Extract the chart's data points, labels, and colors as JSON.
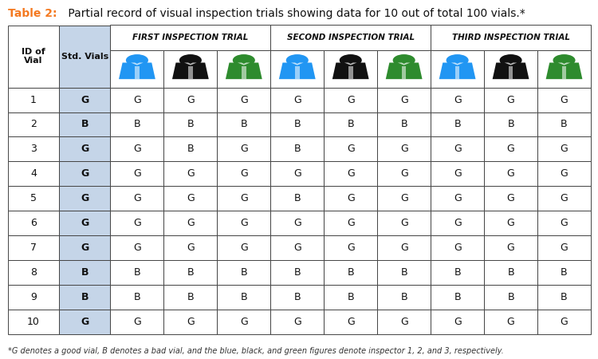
{
  "title_bold": "Table 2:",
  "title_rest": " Partial record of visual inspection trials showing data for 10 out of total 100 vials.*",
  "title_color": "#F47920",
  "title_rest_color": "#111111",
  "footnote": "*G denotes a good vial, B denotes a bad vial, and the blue, black, and green figures denote inspector 1, 2, and 3, respectively.",
  "inspector_colors": [
    "#2196F3",
    "#111111",
    "#2E8B2E"
  ],
  "std_vials_bg": "#C5D5E8",
  "row_data": [
    [
      1,
      "G",
      "G",
      "G",
      "G",
      "G",
      "G",
      "G",
      "G",
      "G",
      "G"
    ],
    [
      2,
      "B",
      "B",
      "B",
      "B",
      "B",
      "B",
      "B",
      "B",
      "B",
      "B"
    ],
    [
      3,
      "G",
      "G",
      "B",
      "G",
      "B",
      "G",
      "G",
      "G",
      "G",
      "G"
    ],
    [
      4,
      "G",
      "G",
      "G",
      "G",
      "G",
      "G",
      "G",
      "G",
      "G",
      "G"
    ],
    [
      5,
      "G",
      "G",
      "G",
      "G",
      "B",
      "G",
      "G",
      "G",
      "G",
      "G"
    ],
    [
      6,
      "G",
      "G",
      "G",
      "G",
      "G",
      "G",
      "G",
      "G",
      "G",
      "G"
    ],
    [
      7,
      "G",
      "G",
      "G",
      "G",
      "G",
      "G",
      "G",
      "G",
      "G",
      "G"
    ],
    [
      8,
      "B",
      "B",
      "B",
      "B",
      "B",
      "B",
      "B",
      "B",
      "B",
      "B"
    ],
    [
      9,
      "B",
      "B",
      "B",
      "B",
      "B",
      "B",
      "B",
      "B",
      "B",
      "B"
    ],
    [
      10,
      "G",
      "G",
      "G",
      "G",
      "G",
      "G",
      "G",
      "G",
      "G",
      "G"
    ]
  ]
}
